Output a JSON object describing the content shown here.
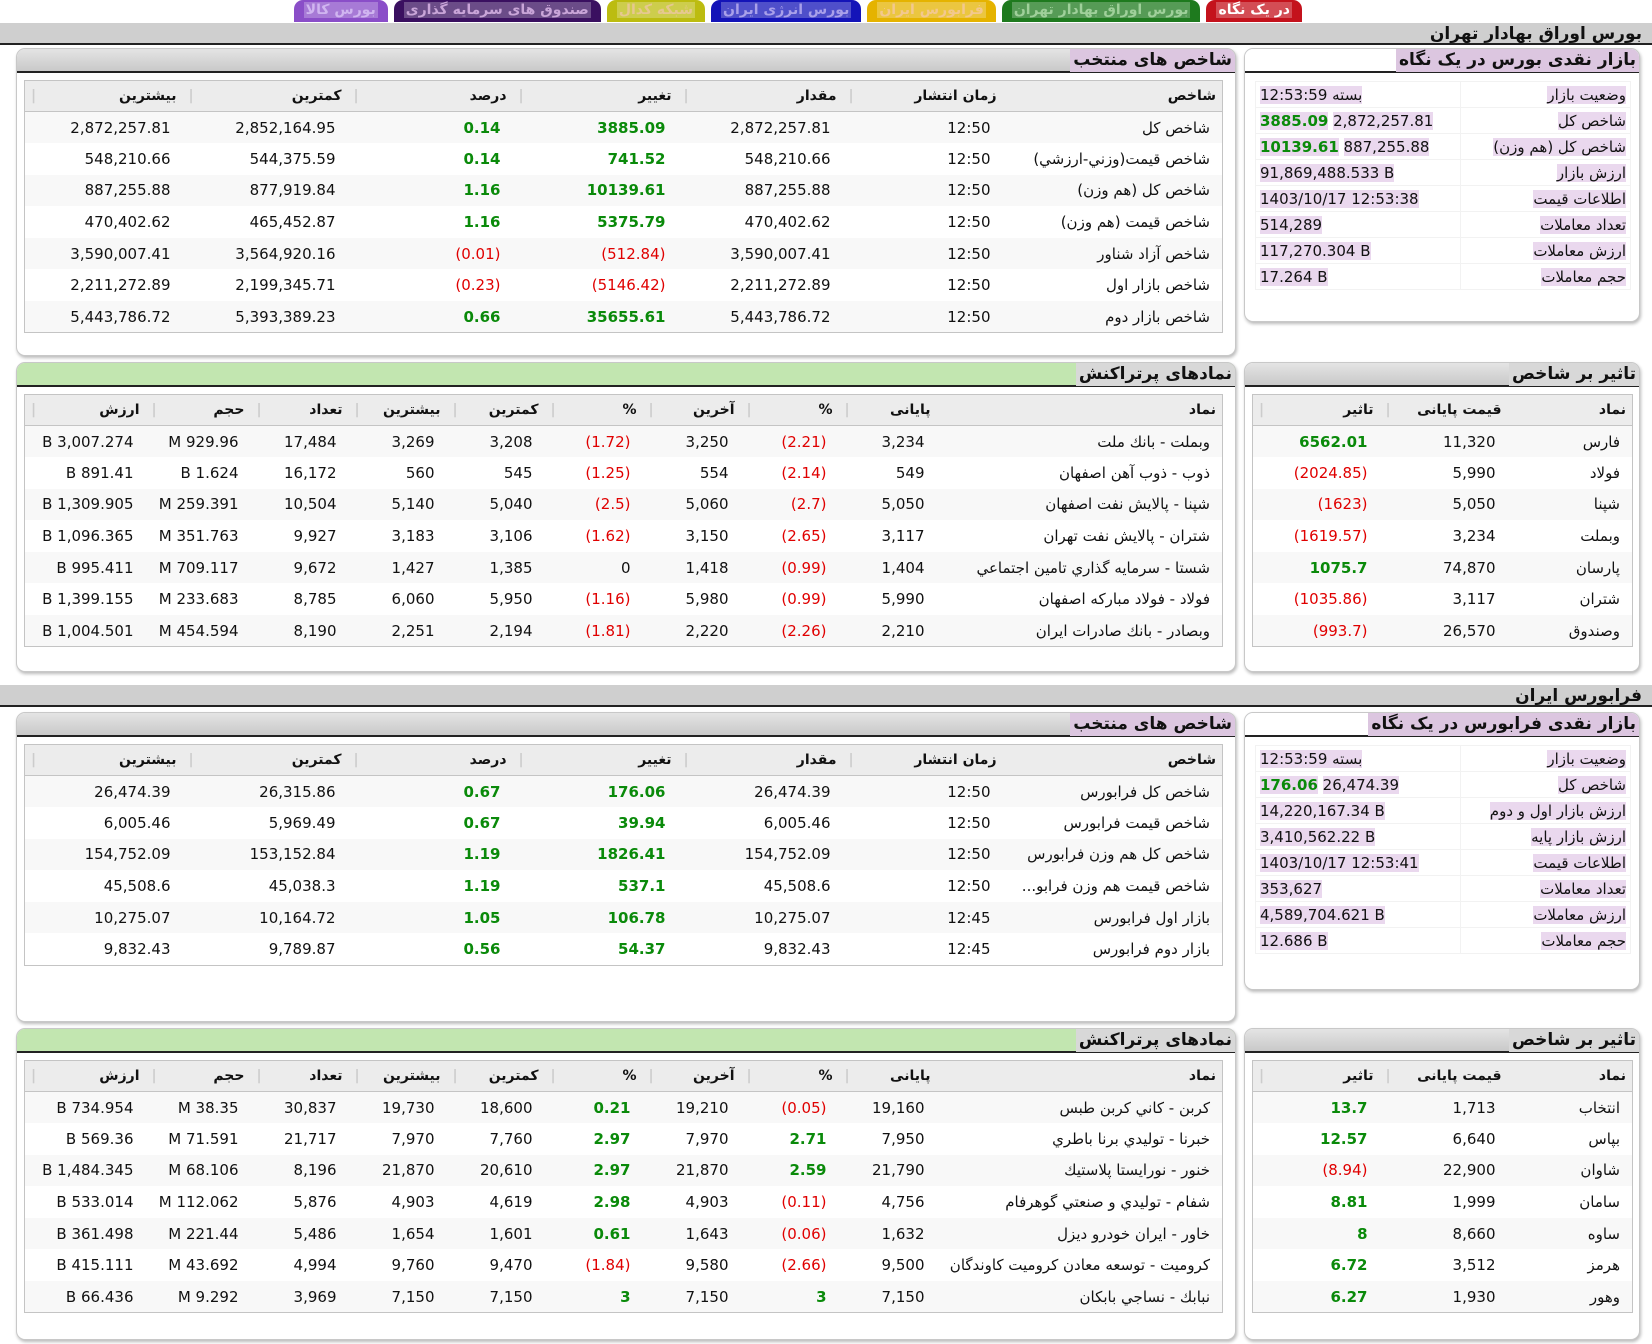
{
  "tabs": [
    {
      "label": "در یک نگاه",
      "color": "#c4121c",
      "text": "#fff"
    },
    {
      "label": "بورس اوراق بهادار تهران",
      "color": "#1e7a1e",
      "text": "#9fd09a"
    },
    {
      "label": "فرابورس ایران",
      "color": "#e5b300",
      "text": "#f3c88e"
    },
    {
      "label": "بورس انرژی ایران",
      "color": "#1414b8",
      "text": "#a9a0ea"
    },
    {
      "label": "شبکه کدال",
      "color": "#bcbc10",
      "text": "#e6c890"
    },
    {
      "label": "صندوق های سرمایه گذاری",
      "color": "#3a1060",
      "text": "#c9a5d8"
    },
    {
      "label": "بورس کالا",
      "color": "#8a4ec8",
      "text": "#d0b5f0"
    }
  ],
  "colors": {
    "positive": "#0a8a0a",
    "negative": "#e00000",
    "highlight": "#ead8ee"
  },
  "tehran": {
    "section_title": "بورس اوراق بهادار تهران",
    "indices": {
      "title": "شاخص های منتخب",
      "headers": [
        "شاخص",
        "زمان انتشار",
        "مقدار",
        "تغییر",
        "درصد",
        "کمترین",
        "بیشترین"
      ],
      "rows": [
        [
          "شاخص کل",
          "12:50",
          "2,872,257.81",
          "3885.09",
          "0.14",
          "2,852,164.95",
          "2,872,257.81"
        ],
        [
          "شاخص قیمت(وزني-ارزشي)",
          "12:50",
          "548,210.66",
          "741.52",
          "0.14",
          "544,375.59",
          "548,210.66"
        ],
        [
          "شاخص کل (هم وزن)",
          "12:50",
          "887,255.88",
          "10139.61",
          "1.16",
          "877,919.84",
          "887,255.88"
        ],
        [
          "شاخص قیمت (هم وزن)",
          "12:50",
          "470,402.62",
          "5375.79",
          "1.16",
          "465,452.87",
          "470,402.62"
        ],
        [
          "شاخص آزاد شناور",
          "12:50",
          "3,590,007.41",
          "(512.84)",
          "(0.01)",
          "3,564,920.16",
          "3,590,007.41"
        ],
        [
          "شاخص بازار اول",
          "12:50",
          "2,211,272.89",
          "(5146.42)",
          "(0.23)",
          "2,199,345.71",
          "2,211,272.89"
        ],
        [
          "شاخص بازار دوم",
          "12:50",
          "5,443,786.72",
          "35655.61",
          "0.66",
          "5,393,389.23",
          "5,443,786.72"
        ]
      ]
    },
    "summary": {
      "title": "بازار نقدی بورس در یک نگاه",
      "rows": [
        {
          "label": "وضعیت بازار",
          "value": "بسته 12:53:59"
        },
        {
          "label": "شاخص کل",
          "value": "2,872,257.81",
          "change": "3885.09"
        },
        {
          "label": "شاخص کل (هم وزن)",
          "value": "887,255.88",
          "change": "10139.61"
        },
        {
          "label": "ارزش بازار",
          "value": "91,869,488.533 B"
        },
        {
          "label": "اطلاعات قیمت",
          "value": "1403/10/17 12:53:38"
        },
        {
          "label": "تعداد معاملات",
          "value": "514,289"
        },
        {
          "label": "ارزش معاملات",
          "value": "117,270.304 B"
        },
        {
          "label": "حجم معاملات",
          "value": "17.264 B"
        }
      ]
    },
    "active": {
      "title": "نمادهای پرتراکنش",
      "headers": [
        "نماد",
        "پایانی",
        "%",
        "آخرین",
        "%",
        "کمترین",
        "بیشترین",
        "تعداد",
        "حجم",
        "ارزش"
      ],
      "rows": [
        [
          "وبملت - بانك ملت",
          "3,234",
          "(2.21)",
          "3,250",
          "(1.72)",
          "3,208",
          "3,269",
          "17,484",
          "929.96 M",
          "3,007.274 B"
        ],
        [
          "ذوب - ذوب آهن اصفهان",
          "549",
          "(2.14)",
          "554",
          "(1.25)",
          "545",
          "560",
          "16,172",
          "1.624 B",
          "891.41 B"
        ],
        [
          "شپنا - پالايش نفت اصفهان",
          "5,050",
          "(2.7)",
          "5,060",
          "(2.5)",
          "5,040",
          "5,140",
          "10,504",
          "259.391 M",
          "1,309.905 B"
        ],
        [
          "شتران - پالايش نفت تهران",
          "3,117",
          "(2.65)",
          "3,150",
          "(1.62)",
          "3,106",
          "3,183",
          "9,927",
          "351.763 M",
          "1,096.365 B"
        ],
        [
          "شستا - سرمايه گذاري تامين اجتماعي",
          "1,404",
          "(0.99)",
          "1,418",
          "0",
          "1,385",
          "1,427",
          "9,672",
          "709.117 M",
          "995.411 B"
        ],
        [
          "فولاد - فولاد مباركه اصفهان",
          "5,990",
          "(0.99)",
          "5,980",
          "(1.16)",
          "5,950",
          "6,060",
          "8,785",
          "233.683 M",
          "1,399.155 B"
        ],
        [
          "وبصادر - بانك صادرات ايران",
          "2,210",
          "(2.26)",
          "2,220",
          "(1.81)",
          "2,194",
          "2,251",
          "8,190",
          "454.594 M",
          "1,004.501 B"
        ]
      ]
    },
    "impact": {
      "title": "تاثیر بر شاخص",
      "headers": [
        "نماد",
        "قیمت پایانی",
        "تاثیر"
      ],
      "rows": [
        [
          "فارس",
          "11,320",
          "6562.01"
        ],
        [
          "فولاد",
          "5,990",
          "(2024.85)"
        ],
        [
          "شپنا",
          "5,050",
          "(1623)"
        ],
        [
          "وبملت",
          "3,234",
          "(1619.57)"
        ],
        [
          "پارسان",
          "74,870",
          "1075.7"
        ],
        [
          "شتران",
          "3,117",
          "(1035.86)"
        ],
        [
          "وصندوق",
          "26,570",
          "(993.7)"
        ]
      ]
    }
  },
  "fara": {
    "section_title": "فرابورس ایران",
    "indices": {
      "title": "شاخص های منتخب",
      "headers": [
        "شاخص",
        "زمان انتشار",
        "مقدار",
        "تغییر",
        "درصد",
        "کمترین",
        "بیشترین"
      ],
      "rows": [
        [
          "شاخص کل فرابورس",
          "12:50",
          "26,474.39",
          "176.06",
          "0.67",
          "26,315.86",
          "26,474.39"
        ],
        [
          "شاخص قیمت فرابورس",
          "12:50",
          "6,005.46",
          "39.94",
          "0.67",
          "5,969.49",
          "6,005.46"
        ],
        [
          "شاخص کل هم وزن فرابورس",
          "12:50",
          "154,752.09",
          "1826.41",
          "1.19",
          "153,152.84",
          "154,752.09"
        ],
        [
          "شاخص قیمت هم وزن فرابو...",
          "12:50",
          "45,508.6",
          "537.1",
          "1.19",
          "45,038.3",
          "45,508.6"
        ],
        [
          "بازار اول فرابورس",
          "12:45",
          "10,275.07",
          "106.78",
          "1.05",
          "10,164.72",
          "10,275.07"
        ],
        [
          "بازار دوم فرابورس",
          "12:45",
          "9,832.43",
          "54.37",
          "0.56",
          "9,789.87",
          "9,832.43"
        ]
      ]
    },
    "summary": {
      "title": "بازار نقدی فرابورس در یک نگاه",
      "rows": [
        {
          "label": "وضعیت بازار",
          "value": "بسته 12:53:59"
        },
        {
          "label": "شاخص کل",
          "value": "26,474.39",
          "change": "176.06"
        },
        {
          "label": "ارزش بازار اول و دوم",
          "value": "14,220,167.34 B"
        },
        {
          "label": "ارزش بازار پایه",
          "value": "3,410,562.22 B"
        },
        {
          "label": "اطلاعات قیمت",
          "value": "1403/10/17 12:53:41"
        },
        {
          "label": "تعداد معاملات",
          "value": "353,627"
        },
        {
          "label": "ارزش معاملات",
          "value": "4,589,704.621 B"
        },
        {
          "label": "حجم معاملات",
          "value": "12.686 B"
        }
      ]
    },
    "active": {
      "title": "نمادهای پرتراکنش",
      "headers": [
        "نماد",
        "پایانی",
        "%",
        "آخرین",
        "%",
        "کمترین",
        "بیشترین",
        "تعداد",
        "حجم",
        "ارزش"
      ],
      "rows": [
        [
          "كربن - كاني كربن طبس",
          "19,160",
          "(0.05)",
          "19,210",
          "0.21",
          "18,600",
          "19,730",
          "30,837",
          "38.35 M",
          "734.954 B"
        ],
        [
          "خبرنا - توليدي برنا باطري",
          "7,950",
          "2.71",
          "7,970",
          "2.97",
          "7,760",
          "7,970",
          "21,717",
          "71.591 M",
          "569.36 B"
        ],
        [
          "خنور - نورايستا پلاستيك",
          "21,790",
          "2.59",
          "21,870",
          "2.97",
          "20,610",
          "21,870",
          "8,196",
          "68.106 M",
          "1,484.345 B"
        ],
        [
          "شفام - توليدي و صنعتي گوهرفام",
          "4,756",
          "(0.11)",
          "4,903",
          "2.98",
          "4,619",
          "4,903",
          "5,876",
          "112.062 M",
          "533.014 B"
        ],
        [
          "خاور - ايران خودرو ديزل",
          "1,632",
          "(0.06)",
          "1,643",
          "0.61",
          "1,601",
          "1,654",
          "5,486",
          "221.44 M",
          "361.498 B"
        ],
        [
          "كروميت - توسعه معادن كروميت كاوندگان",
          "9,500",
          "(2.66)",
          "9,580",
          "(1.84)",
          "9,470",
          "9,760",
          "4,994",
          "43.692 M",
          "415.111 B"
        ],
        [
          "نبابك - نساجي بابكان",
          "7,150",
          "3",
          "7,150",
          "3",
          "7,150",
          "7,150",
          "3,969",
          "9.292 M",
          "66.436 B"
        ]
      ]
    },
    "impact": {
      "title": "تاثیر بر شاخص",
      "headers": [
        "نماد",
        "قیمت پایانی",
        "تاثیر"
      ],
      "rows": [
        [
          "انتخاب",
          "1,713",
          "13.7"
        ],
        [
          "بپاس",
          "6,640",
          "12.57"
        ],
        [
          "شاوان",
          "22,900",
          "(8.94)"
        ],
        [
          "سامان",
          "1,999",
          "8.81"
        ],
        [
          "ساوه",
          "8,660",
          "8"
        ],
        [
          "هرمز",
          "3,512",
          "6.72"
        ],
        [
          "وهور",
          "1,930",
          "6.27"
        ]
      ]
    }
  }
}
